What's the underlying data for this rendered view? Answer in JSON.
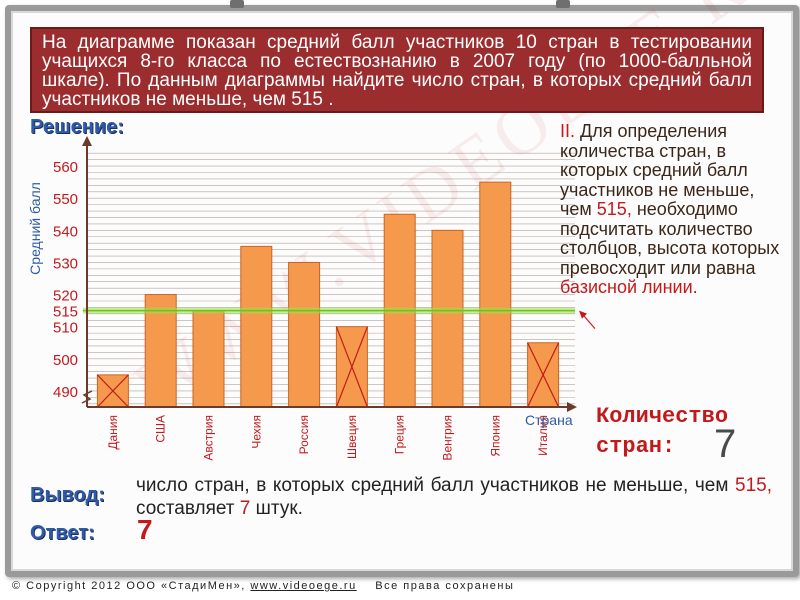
{
  "problem": {
    "text": "На диаграмме показан средний балл участников 10 стран в тестировании учащихся 8-го класса по естествознанию в 2007 году (по 1000-балльной шкале). По данным диаграммы найдите число стран, в которых средний балл участников не меньше, чем 515 ."
  },
  "solution_heading": "Решение:",
  "side_note": {
    "marker": "II.",
    "part1": "Для определения количества стран, в которых средний балл участников не меньше, чем",
    "value": "515,",
    "part2": "необходимо подсчитать количество столбцов, высота которых превосходит или равна",
    "part3": "базисной линии."
  },
  "count": {
    "label_line1": "Количество",
    "label_line2": "стран:",
    "value": "7"
  },
  "conclusion": {
    "heading": "Вывод:",
    "part1": "число стран, в которых средний балл участников не меньше, чем",
    "value": "515,",
    "part2": "составляет",
    "count": "7",
    "part3": "штук."
  },
  "answer": {
    "heading": "Ответ:",
    "value": "7"
  },
  "watermark": "WWW.VIDEOEGE.RU",
  "footer": {
    "copyright": "© Copyright 2012 ООО «СтадиМен»,",
    "link": "www.videoege.ru",
    "rights": "Все права сохранены"
  },
  "colors": {
    "bar": "#f59a4c",
    "bar_stroke": "#c8632a",
    "baseline": "#9be34a",
    "accent_red": "#c4191b",
    "problem_bg": "#9b2d2f"
  },
  "chart_data": {
    "type": "bar",
    "ylabel": "Средний балл",
    "xlabel": "Страна",
    "ylim": [
      485,
      565
    ],
    "yticks": [
      490,
      500,
      510,
      520,
      530,
      540,
      550,
      560
    ],
    "baseline": 515,
    "baseline_label": "515",
    "categories": [
      "Дания",
      "США",
      "Австрия",
      "Чехия",
      "Россия",
      "Швеция",
      "Греция",
      "Венгрия",
      "Япония",
      "Италия"
    ],
    "values": [
      495,
      520,
      515,
      535,
      530,
      510,
      545,
      540,
      555,
      505
    ],
    "crossed_out": [
      true,
      false,
      false,
      false,
      false,
      true,
      false,
      false,
      false,
      true
    ],
    "grid": true
  }
}
